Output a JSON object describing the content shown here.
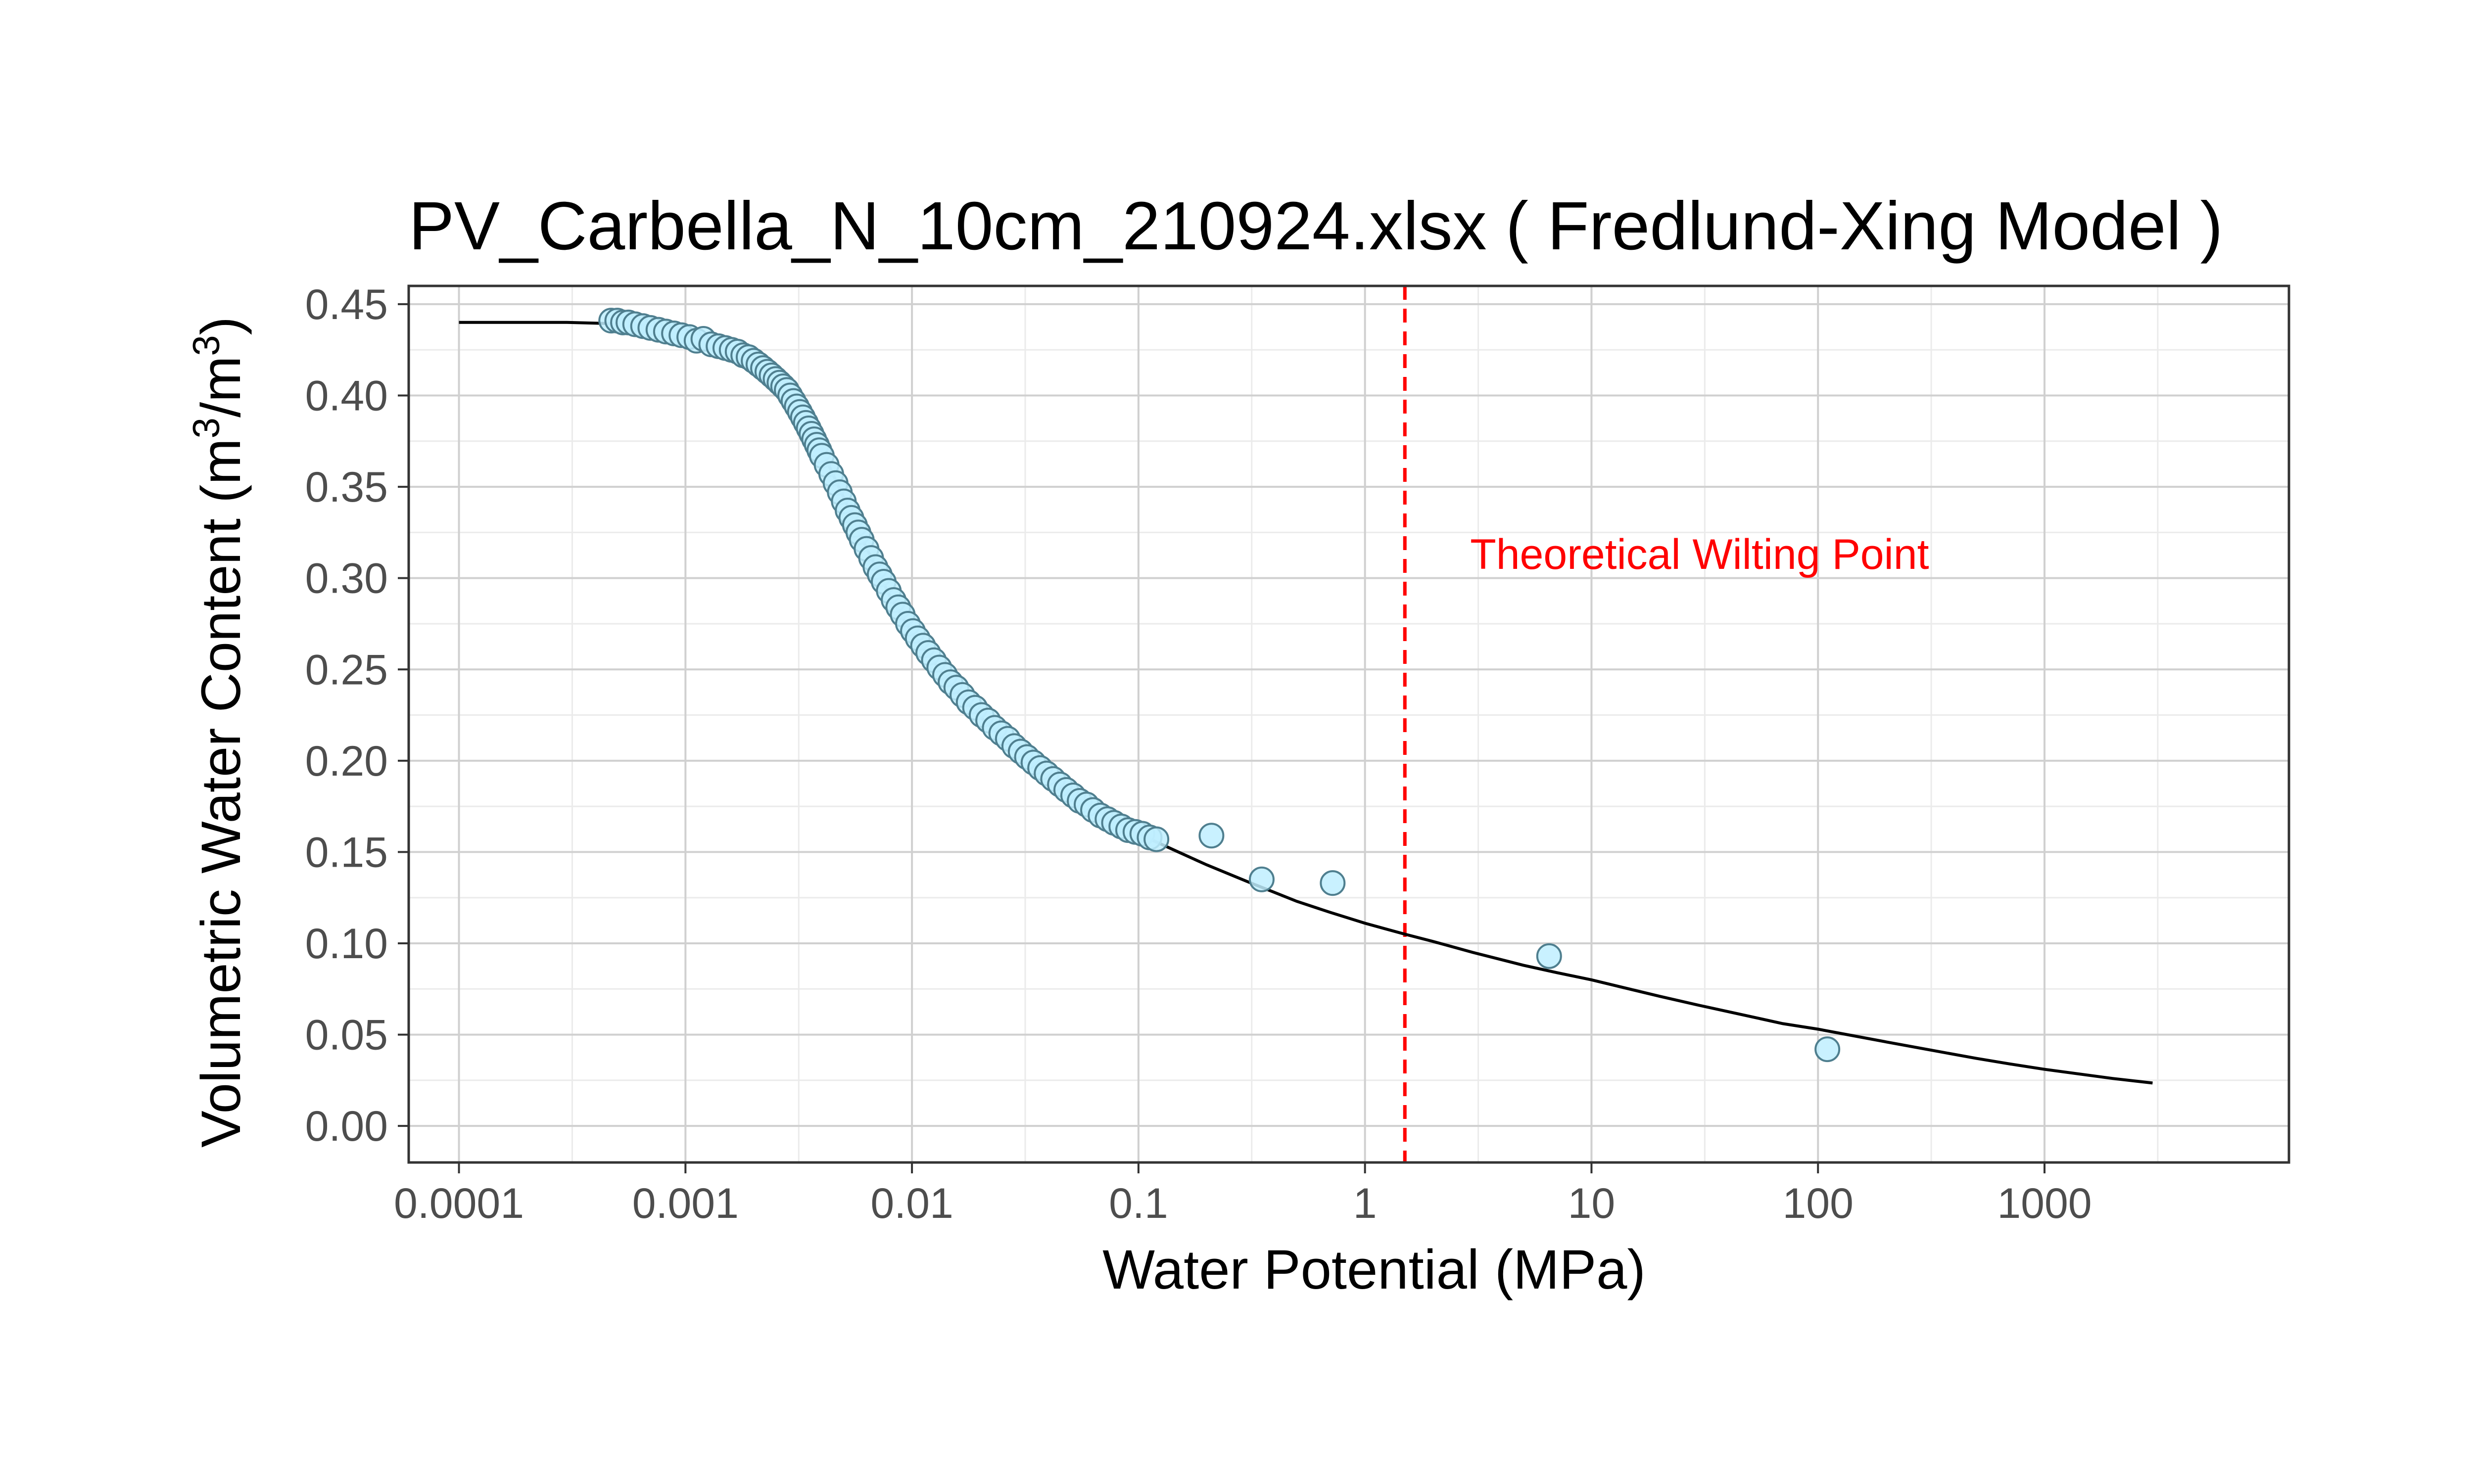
{
  "chart_data": {
    "type": "scatter",
    "title": "PV_Carbella_N_10cm_210924.xlsx ( Fredlund-Xing Model )",
    "xlabel": "Water Potential (MPa)",
    "ylabel_parts": {
      "base": "Volumetric Water Content (m",
      "exp1": "3",
      "mid": "/m",
      "exp2": "3",
      "end": ")"
    },
    "x_scale": "log",
    "xlim": [
      6e-05,
      12000
    ],
    "ylim": [
      -0.02,
      0.46
    ],
    "x_ticks": [
      {
        "value": 0.0001,
        "label": "0.0001"
      },
      {
        "value": 0.001,
        "label": "0.001"
      },
      {
        "value": 0.01,
        "label": "0.01"
      },
      {
        "value": 0.1,
        "label": "0.1"
      },
      {
        "value": 1,
        "label": "1"
      },
      {
        "value": 10,
        "label": "10"
      },
      {
        "value": 100,
        "label": "100"
      },
      {
        "value": 1000,
        "label": "1000"
      }
    ],
    "y_ticks": [
      {
        "value": 0.0,
        "label": "0.00"
      },
      {
        "value": 0.05,
        "label": "0.05"
      },
      {
        "value": 0.1,
        "label": "0.10"
      },
      {
        "value": 0.15,
        "label": "0.15"
      },
      {
        "value": 0.2,
        "label": "0.20"
      },
      {
        "value": 0.25,
        "label": "0.25"
      },
      {
        "value": 0.3,
        "label": "0.30"
      },
      {
        "value": 0.35,
        "label": "0.35"
      },
      {
        "value": 0.4,
        "label": "0.40"
      },
      {
        "value": 0.45,
        "label": "0.45"
      }
    ],
    "grid": true,
    "series": [
      {
        "kind": "points",
        "color": "#bfeeff",
        "stroke": "#4f7f8f",
        "points": [
          [
            0.00047,
            0.441
          ],
          [
            0.0005,
            0.441
          ],
          [
            0.00053,
            0.44
          ],
          [
            0.00056,
            0.44
          ],
          [
            0.0006,
            0.439
          ],
          [
            0.00065,
            0.438
          ],
          [
            0.0007,
            0.437
          ],
          [
            0.00076,
            0.436
          ],
          [
            0.00082,
            0.435
          ],
          [
            0.00089,
            0.434
          ],
          [
            0.00096,
            0.433
          ],
          [
            0.00104,
            0.432
          ],
          [
            0.00112,
            0.43
          ],
          [
            0.0012,
            0.431
          ],
          [
            0.0013,
            0.428
          ],
          [
            0.0014,
            0.427
          ],
          [
            0.0015,
            0.426
          ],
          [
            0.0016,
            0.425
          ],
          [
            0.0017,
            0.424
          ],
          [
            0.0018,
            0.422
          ],
          [
            0.0019,
            0.421
          ],
          [
            0.002,
            0.419
          ],
          [
            0.0021,
            0.417
          ],
          [
            0.0022,
            0.415
          ],
          [
            0.0023,
            0.413
          ],
          [
            0.0024,
            0.411
          ],
          [
            0.0025,
            0.409
          ],
          [
            0.0026,
            0.407
          ],
          [
            0.0027,
            0.405
          ],
          [
            0.0028,
            0.403
          ],
          [
            0.0029,
            0.4
          ],
          [
            0.003,
            0.397
          ],
          [
            0.0031,
            0.394
          ],
          [
            0.0032,
            0.391
          ],
          [
            0.0033,
            0.388
          ],
          [
            0.0034,
            0.385
          ],
          [
            0.0035,
            0.382
          ],
          [
            0.0036,
            0.379
          ],
          [
            0.0037,
            0.376
          ],
          [
            0.0038,
            0.373
          ],
          [
            0.0039,
            0.37
          ],
          [
            0.004,
            0.367
          ],
          [
            0.0042,
            0.362
          ],
          [
            0.0044,
            0.357
          ],
          [
            0.0046,
            0.352
          ],
          [
            0.0048,
            0.347
          ],
          [
            0.005,
            0.342
          ],
          [
            0.0052,
            0.337
          ],
          [
            0.0054,
            0.333
          ],
          [
            0.0056,
            0.329
          ],
          [
            0.0058,
            0.325
          ],
          [
            0.006,
            0.321
          ],
          [
            0.0063,
            0.316
          ],
          [
            0.0066,
            0.311
          ],
          [
            0.0069,
            0.306
          ],
          [
            0.0072,
            0.302
          ],
          [
            0.0075,
            0.298
          ],
          [
            0.0079,
            0.293
          ],
          [
            0.0083,
            0.288
          ],
          [
            0.0087,
            0.284
          ],
          [
            0.0091,
            0.28
          ],
          [
            0.0096,
            0.275
          ],
          [
            0.0101,
            0.271
          ],
          [
            0.0106,
            0.267
          ],
          [
            0.0112,
            0.263
          ],
          [
            0.0118,
            0.259
          ],
          [
            0.0125,
            0.255
          ],
          [
            0.0132,
            0.251
          ],
          [
            0.014,
            0.247
          ],
          [
            0.0148,
            0.243
          ],
          [
            0.0157,
            0.24
          ],
          [
            0.0167,
            0.236
          ],
          [
            0.0178,
            0.232
          ],
          [
            0.019,
            0.229
          ],
          [
            0.0203,
            0.225
          ],
          [
            0.0217,
            0.222
          ],
          [
            0.0232,
            0.218
          ],
          [
            0.0248,
            0.215
          ],
          [
            0.0265,
            0.212
          ],
          [
            0.0283,
            0.208
          ],
          [
            0.0302,
            0.205
          ],
          [
            0.0322,
            0.202
          ],
          [
            0.0344,
            0.199
          ],
          [
            0.0368,
            0.196
          ],
          [
            0.0393,
            0.193
          ],
          [
            0.042,
            0.19
          ],
          [
            0.045,
            0.187
          ],
          [
            0.048,
            0.184
          ],
          [
            0.0515,
            0.181
          ],
          [
            0.055,
            0.178
          ],
          [
            0.059,
            0.176
          ],
          [
            0.063,
            0.173
          ],
          [
            0.068,
            0.17
          ],
          [
            0.073,
            0.168
          ],
          [
            0.078,
            0.166
          ],
          [
            0.084,
            0.164
          ],
          [
            0.09,
            0.162
          ],
          [
            0.097,
            0.161
          ],
          [
            0.104,
            0.16
          ],
          [
            0.112,
            0.158
          ],
          [
            0.12,
            0.157
          ],
          [
            0.21,
            0.159
          ],
          [
            0.35,
            0.135
          ],
          [
            0.72,
            0.133
          ],
          [
            6.5,
            0.093
          ],
          [
            110,
            0.042
          ]
        ]
      },
      {
        "kind": "fitted-line",
        "model": "Fredlund-Xing",
        "color": "#000000",
        "points": [
          [
            0.0001,
            0.44
          ],
          [
            0.0003,
            0.44
          ],
          [
            0.0006,
            0.439
          ],
          [
            0.001,
            0.436
          ],
          [
            0.0015,
            0.428
          ],
          [
            0.002,
            0.418
          ],
          [
            0.0025,
            0.408
          ],
          [
            0.003,
            0.396
          ],
          [
            0.004,
            0.37
          ],
          [
            0.005,
            0.344
          ],
          [
            0.006,
            0.322
          ],
          [
            0.008,
            0.29
          ],
          [
            0.01,
            0.27
          ],
          [
            0.015,
            0.241
          ],
          [
            0.02,
            0.224
          ],
          [
            0.03,
            0.204
          ],
          [
            0.05,
            0.182
          ],
          [
            0.07,
            0.17
          ],
          [
            0.1,
            0.16
          ],
          [
            0.15,
            0.15
          ],
          [
            0.2,
            0.143
          ],
          [
            0.3,
            0.134
          ],
          [
            0.5,
            0.123
          ],
          [
            0.7,
            0.117
          ],
          [
            1,
            0.111
          ],
          [
            1.5,
            0.105
          ],
          [
            2,
            0.101
          ],
          [
            3,
            0.095
          ],
          [
            5,
            0.088
          ],
          [
            7,
            0.084
          ],
          [
            10,
            0.08
          ],
          [
            20,
            0.071
          ],
          [
            30,
            0.066
          ],
          [
            50,
            0.06
          ],
          [
            70,
            0.056
          ],
          [
            100,
            0.053
          ],
          [
            200,
            0.046
          ],
          [
            300,
            0.042
          ],
          [
            500,
            0.037
          ],
          [
            700,
            0.034
          ],
          [
            1000,
            0.031
          ],
          [
            2000,
            0.026
          ],
          [
            3000,
            0.0235
          ]
        ]
      }
    ],
    "reference_line": {
      "x": 1.5,
      "color": "#ff0000",
      "style": "dashed"
    },
    "annotation": {
      "text": "Theoretical Wilting Point",
      "x": 30,
      "y": 0.305,
      "color": "#ff0000"
    }
  }
}
